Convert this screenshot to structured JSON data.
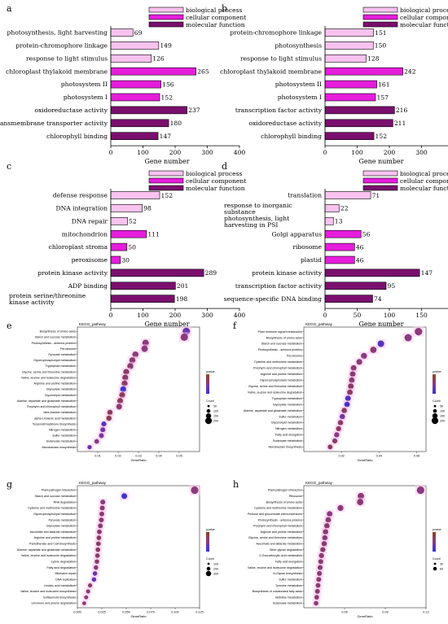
{
  "panel_labels": [
    "a",
    "b",
    "c",
    "d",
    "e",
    "f",
    "g",
    "h"
  ],
  "colors": {
    "biological_process": "#f9c2ef",
    "cellular_component": "#e61ddc",
    "molecular_function": "#7a0f6e",
    "dot_high": "#8b4513",
    "dot_low": "#3333dd",
    "glow": "#ffc8f0"
  },
  "chart_data": [
    {
      "id": "a",
      "type": "bar",
      "xlabel": "Gene number",
      "xlim": [
        0,
        400
      ],
      "xticks": [
        0,
        100,
        200,
        300,
        400
      ],
      "legend": [
        "biological process",
        "cellular component",
        "molecular function"
      ],
      "categories": [
        "photosynthesis, light harvesting",
        "protein-chromophore linkage",
        "response to light stimulus",
        "chloroplast thylakoid membrane",
        "photosystem II",
        "photosystem I",
        "oxidoreductase activity",
        "transmembrane transporter activity",
        "chlorophyll binding"
      ],
      "values": [
        69,
        149,
        126,
        265,
        156,
        152,
        237,
        180,
        147
      ],
      "groups": [
        "bp",
        "bp",
        "bp",
        "cc",
        "cc",
        "cc",
        "mf",
        "mf",
        "mf"
      ]
    },
    {
      "id": "b",
      "type": "bar",
      "xlabel": "Gene number",
      "xlim": [
        0,
        400
      ],
      "xticks": [
        0,
        100,
        200,
        300,
        400
      ],
      "legend": [
        "biological process",
        "cellular component",
        "molecular function"
      ],
      "categories": [
        "protein-chromophore linkage",
        "photosynthesis",
        "response to light stimulus",
        "chloroplast thylakoid membrane",
        "photosystem II",
        "photosystem I",
        "transcription factor activity",
        "oxidoreductase activity",
        "chlorophyll binding"
      ],
      "values": [
        151,
        150,
        128,
        242,
        161,
        157,
        216,
        211,
        152
      ],
      "groups": [
        "bp",
        "bp",
        "bp",
        "cc",
        "cc",
        "cc",
        "mf",
        "mf",
        "mf"
      ]
    },
    {
      "id": "c",
      "type": "bar",
      "xlabel": "Gene number",
      "xlim": [
        0,
        400
      ],
      "xticks": [
        0,
        100,
        200,
        300,
        400
      ],
      "legend": [
        "biological process",
        "cellular component",
        "molecular function"
      ],
      "categories": [
        "defense response",
        "DNA integration",
        "DNA repair",
        "mitochondrion",
        "chloroplast stroma",
        "peroxisome",
        "protein kinase activity",
        "ADP binding",
        "protein serine/threonine kinase activity"
      ],
      "values": [
        152,
        98,
        52,
        111,
        50,
        30,
        289,
        201,
        198
      ],
      "groups": [
        "bp",
        "bp",
        "bp",
        "cc",
        "cc",
        "cc",
        "mf",
        "mf",
        "mf"
      ]
    },
    {
      "id": "d",
      "type": "bar",
      "xlabel": "Gene number",
      "xlim": [
        0,
        200
      ],
      "xticks": [
        0,
        50,
        100,
        150,
        200
      ],
      "legend": [
        "biological process",
        "cellular component",
        "molecular function"
      ],
      "categories": [
        "translation",
        "response to inorganic substance",
        "photosynthesis, light harvesting in PSI",
        "Golgi apparatus",
        "ribosome",
        "plastid",
        "protein kinase activity",
        "transcription factor activity",
        "sequence-specific DNA binding"
      ],
      "values": [
        71,
        22,
        13,
        56,
        46,
        46,
        147,
        95,
        74
      ],
      "groups": [
        "bp",
        "bp",
        "bp",
        "cc",
        "cc",
        "cc",
        "mf",
        "mf",
        "mf"
      ]
    },
    {
      "id": "e",
      "type": "scatter",
      "title": "KEGG_pathway",
      "xlabel": "GeneRatio",
      "xlim": [
        0.0,
        0.06
      ],
      "xticks": [
        "0.01",
        "0.02",
        "0.03",
        "0.04",
        "0.05"
      ],
      "xtick_values": [
        0.01,
        0.02,
        0.03,
        0.04,
        0.05
      ],
      "legend_color_title": "pvalue",
      "legend_size_title": "Count",
      "size_labels": [
        "50",
        "100",
        "150",
        "200"
      ],
      "categories": [
        "Biosynthesis of amino acids",
        "Starch and sucrose metabolism",
        "Photosynthesis - antenna proteins",
        "Peroxisome",
        "Pyruvate metabolism",
        "Glycerophospholipid metabolism",
        "Tryptophan metabolism",
        "Glycine, serine and threonine metabolism",
        "Valine, leucine and isoleucine degradation",
        "Arginine and proline metabolism",
        "Glyoxylate metabolism",
        "Glycerolipid metabolism",
        "Alanine, aspartate and glutamate metabolism",
        "Porphyrin and chlorophyll metabolism",
        "beta-Alanine metabolism",
        "alpha-Linolenic acid metabolism",
        "Terpenoid backbone biosynthesis",
        "Nitrogen metabolism",
        "Sulfur metabolism",
        "Butanoate metabolism",
        "Monobactam biosynthesis"
      ],
      "x": [
        0.0535,
        0.0525,
        0.0335,
        0.033,
        0.0285,
        0.027,
        0.026,
        0.024,
        0.0235,
        0.0232,
        0.0225,
        0.022,
        0.021,
        0.0205,
        0.016,
        0.0155,
        0.013,
        0.0125,
        0.0118,
        0.0095,
        0.006
      ],
      "pvalue_level": [
        0.3,
        0.55,
        0.55,
        0.55,
        0.6,
        0.6,
        0.6,
        0.65,
        0.65,
        0.65,
        0.05,
        0.7,
        0.7,
        0.6,
        0.7,
        0.7,
        0.2,
        0.35,
        0.4,
        0.5,
        0.3
      ],
      "counts": [
        170,
        165,
        110,
        105,
        95,
        90,
        88,
        82,
        80,
        80,
        78,
        76,
        72,
        70,
        55,
        53,
        45,
        43,
        40,
        33,
        20
      ]
    },
    {
      "id": "f",
      "type": "scatter",
      "title": "KEGG_pathway",
      "xlabel": "GeneRatio",
      "xlim": [
        0.0,
        0.065
      ],
      "xticks": [
        "0.02",
        "0.04",
        "0.06"
      ],
      "xtick_values": [
        0.02,
        0.04,
        0.06
      ],
      "legend_color_title": "pvalue",
      "legend_size_title": "Count",
      "size_labels": [
        "50",
        "100",
        "150",
        "200"
      ],
      "categories": [
        "Plant hormone signal transduction",
        "Biosynthesis of amino acids",
        "Starch and sucrose metabolism",
        "Photosynthesis - antenna proteins",
        "Peroxisome",
        "Cysteine and methionine metabolism",
        "Porphyrin and chlorophyll metabolism",
        "Arginine and proline metabolism",
        "Glycerophospholipid metabolism",
        "Glycine, serine and threonine metabolism",
        "Valine, leucine and isoleucine degradation",
        "Tryptophan metabolism",
        "Glyoxylate metabolism",
        "Alanine, aspartate and glutamate metabolism",
        "Sulfur metabolism",
        "Glycerolipid metabolism",
        "Nitrogen metabolism",
        "Fatty acid elongation",
        "Butanoate metabolism",
        "Monobactam biosynthesis"
      ],
      "x": [
        0.061,
        0.0555,
        0.041,
        0.037,
        0.032,
        0.0295,
        0.0265,
        0.026,
        0.0255,
        0.025,
        0.0245,
        0.0235,
        0.023,
        0.0215,
        0.0205,
        0.0195,
        0.0185,
        0.0175,
        0.0165,
        0.014
      ],
      "pvalue_level": [
        0.55,
        0.55,
        0.2,
        0.6,
        0.55,
        0.6,
        0.6,
        0.6,
        0.6,
        0.65,
        0.65,
        0.15,
        0.1,
        0.65,
        0.35,
        0.65,
        0.65,
        0.5,
        0.65,
        0.65
      ],
      "counts": [
        190,
        170,
        125,
        110,
        96,
        88,
        80,
        78,
        76,
        75,
        73,
        70,
        68,
        64,
        60,
        58,
        55,
        52,
        49,
        40
      ]
    },
    {
      "id": "g",
      "type": "scatter",
      "title": "KEGG_pathway",
      "xlabel": "GeneRatio",
      "xlim": [
        0.0,
        0.125
      ],
      "xticks": [
        "0.000",
        "0.025",
        "0.050",
        "0.075",
        "0.100",
        "0.125"
      ],
      "xtick_values": [
        0.0,
        0.025,
        0.05,
        0.075,
        0.1,
        0.125
      ],
      "legend_color_title": "pvalue",
      "legend_size_title": "Count",
      "size_labels": [
        "100",
        "200",
        "300"
      ],
      "categories": [
        "Plant-pathogen interaction",
        "Starch and sucrose metabolism",
        "RNA degradation",
        "Cysteine and methionine metabolism",
        "Glycerophospholipid metabolism",
        "Pyruvate metabolism",
        "Glyoxylate metabolism",
        "Ascorbate and aldarate metabolism",
        "Arginine and proline metabolism",
        "Pantothenate and CoA biosynthesis",
        "Alanine, aspartate and glutamate metabolism",
        "Valine, leucine and isoleucine degradation",
        "Lysine degradation",
        "Fatty acid degradation",
        "Mismatch repair",
        "DNA replication",
        "Linoleic acid metabolism",
        "Valine, leucine and isoleucine biosynthesis",
        "Isoflavonoid biosynthesis",
        "Limonene and pinene degradation"
      ],
      "x": [
        0.12,
        0.048,
        0.026,
        0.0255,
        0.025,
        0.0245,
        0.0235,
        0.0225,
        0.022,
        0.0215,
        0.021,
        0.0205,
        0.02,
        0.019,
        0.018,
        0.017,
        0.013,
        0.011,
        0.009,
        0.007
      ],
      "pvalue_level": [
        0.55,
        0.05,
        0.55,
        0.6,
        0.6,
        0.6,
        0.6,
        0.6,
        0.65,
        0.65,
        0.65,
        0.65,
        0.65,
        0.6,
        0.3,
        0.3,
        0.6,
        0.6,
        0.6,
        0.6
      ],
      "counts": [
        320,
        130,
        75,
        73,
        72,
        70,
        67,
        64,
        62,
        60,
        58,
        56,
        55,
        52,
        50,
        47,
        38,
        33,
        27,
        22
      ]
    },
    {
      "id": "h",
      "type": "scatter",
      "title": "KEGG_pathway",
      "xlabel": "GeneRatio",
      "xlim": [
        0.03,
        0.12
      ],
      "xticks": [
        "0.06",
        "0.09",
        "0.12"
      ],
      "xtick_values": [
        0.06,
        0.09,
        0.12
      ],
      "legend_color_title": "pvalue",
      "legend_size_title": "Count",
      "size_labels": [
        "30",
        "60"
      ],
      "categories": [
        "Plant-pathogen interaction",
        "Ribosome",
        "Biosynthesis of amino acids",
        "Cysteine and methionine metabolism",
        "Pentose and glucuronate interconversions",
        "Photosynthesis - antenna proteins",
        "Porphyrin and chlorophyll metabolism",
        "Arginine and proline metabolism",
        "Glycine, serine and threonine metabolism",
        "Ascorbate and aldarate metabolism",
        "Other glycan degradation",
        "2-Oxocarboxylic acid metabolism",
        "Fatty acid elongation",
        "Valine, leucine and isoleucine degradation",
        "N-Glycan biosynthesis",
        "Sulfur metabolism",
        "Tyrosine metabolism",
        "Biosynthesis of unsaturated fatty acids",
        "Histidine metabolism",
        "Butanoate metabolism"
      ],
      "x": [
        0.116,
        0.072,
        0.0715,
        0.057,
        0.049,
        0.048,
        0.047,
        0.046,
        0.0455,
        0.045,
        0.044,
        0.043,
        0.0425,
        0.042,
        0.0415,
        0.041,
        0.0405,
        0.04,
        0.0395,
        0.039
      ],
      "pvalue_level": [
        0.55,
        0.6,
        0.6,
        0.55,
        0.55,
        0.6,
        0.6,
        0.6,
        0.6,
        0.6,
        0.6,
        0.6,
        0.6,
        0.6,
        0.6,
        0.6,
        0.6,
        0.6,
        0.6,
        0.6
      ],
      "counts": [
        65,
        40,
        40,
        30,
        25,
        24,
        22,
        22,
        20,
        20,
        18,
        18,
        16,
        16,
        15,
        15,
        14,
        14,
        12,
        12
      ]
    }
  ]
}
